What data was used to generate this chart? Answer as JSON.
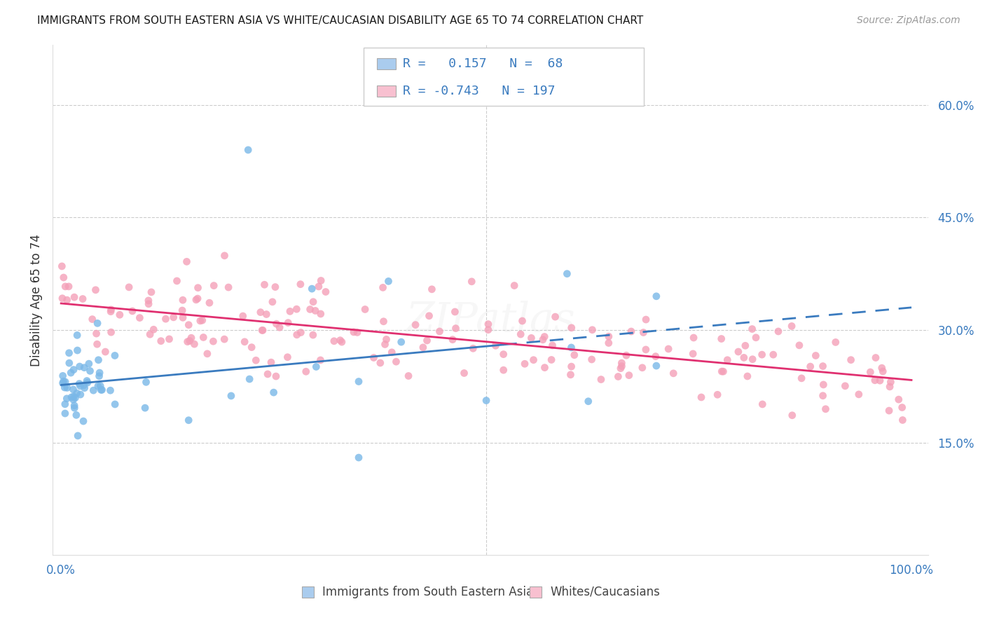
{
  "title": "IMMIGRANTS FROM SOUTH EASTERN ASIA VS WHITE/CAUCASIAN DISABILITY AGE 65 TO 74 CORRELATION CHART",
  "source": "Source: ZipAtlas.com",
  "ylabel": "Disability Age 65 to 74",
  "watermark_text": "ZIPatlas",
  "watermark_font": 42,
  "blue_color": "#7ab8e8",
  "pink_color": "#f4a0b8",
  "blue_line_color": "#3a7bbf",
  "pink_line_color": "#e03070",
  "legend_blue_patch": "#aaccee",
  "legend_pink_patch": "#f8c0d0",
  "legend_r1_val": "0.157",
  "legend_r1_n": "68",
  "legend_r2_val": "-0.743",
  "legend_r2_n": "197",
  "ytick_positions": [
    0.15,
    0.3,
    0.45,
    0.6
  ],
  "ytick_labels": [
    "15.0%",
    "30.0%",
    "45.0%",
    "60.0%"
  ],
  "xtick_left_label": "0.0%",
  "xtick_right_label": "100.0%",
  "legend1_label": "Immigrants from South Eastern Asia",
  "legend2_label": "Whites/Caucasians",
  "xlim": [
    -0.01,
    1.02
  ],
  "ylim": [
    0.0,
    0.68
  ],
  "blue_line_solid_end": 0.52,
  "title_fontsize": 11,
  "source_fontsize": 10,
  "tick_fontsize": 12,
  "ylabel_fontsize": 12,
  "legend_fontsize": 12,
  "watermark_alpha": 0.18,
  "scatter_size": 60,
  "scatter_alpha": 0.8
}
